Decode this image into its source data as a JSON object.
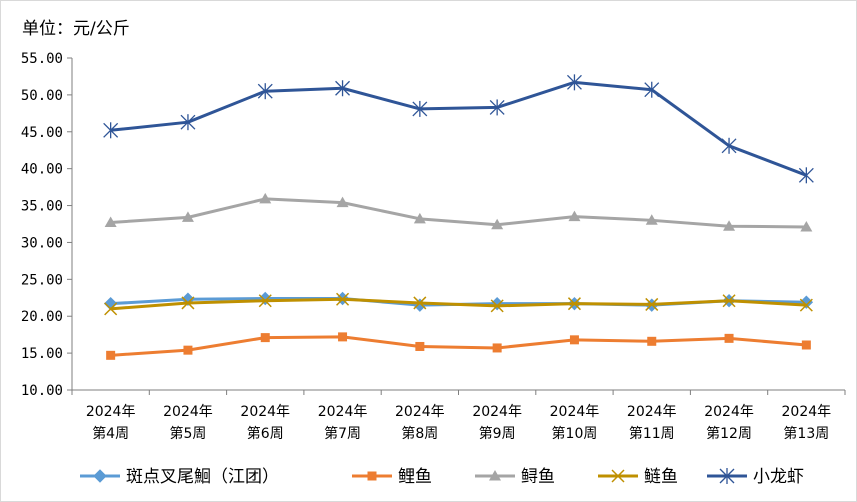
{
  "unit_label": "单位：元/公斤",
  "chart_data": {
    "type": "line",
    "ylim": [
      10,
      55
    ],
    "y_ticks": [
      "10.00",
      "15.00",
      "20.00",
      "25.00",
      "30.00",
      "35.00",
      "40.00",
      "45.00",
      "50.00",
      "55.00"
    ],
    "y_tick_values": [
      10,
      15,
      20,
      25,
      30,
      35,
      40,
      45,
      50,
      55
    ],
    "grid": false,
    "legend_position": "bottom",
    "categories": [
      [
        "2024年",
        "第4周"
      ],
      [
        "2024年",
        "第5周"
      ],
      [
        "2024年",
        "第6周"
      ],
      [
        "2024年",
        "第7周"
      ],
      [
        "2024年",
        "第8周"
      ],
      [
        "2024年",
        "第9周"
      ],
      [
        "2024年",
        "第10周"
      ],
      [
        "2024年",
        "第11周"
      ],
      [
        "2024年",
        "第12周"
      ],
      [
        "2024年",
        "第13周"
      ]
    ],
    "series": [
      {
        "name": "斑点叉尾鮰（江团）",
        "color": "#5b9bd5",
        "marker": "diamond",
        "values": [
          21.7,
          22.3,
          22.4,
          22.4,
          21.5,
          21.7,
          21.7,
          21.5,
          22.1,
          21.9
        ]
      },
      {
        "name": "鲤鱼",
        "color": "#ed7d31",
        "marker": "square",
        "values": [
          14.7,
          15.4,
          17.1,
          17.2,
          15.9,
          15.7,
          16.8,
          16.6,
          17.0,
          16.1
        ]
      },
      {
        "name": "鲟鱼",
        "color": "#a5a5a5",
        "marker": "triangle",
        "values": [
          32.7,
          33.4,
          35.9,
          35.4,
          33.2,
          32.4,
          33.5,
          33.0,
          32.2,
          32.1
        ]
      },
      {
        "name": "鲢鱼",
        "color": "#bf9000",
        "marker": "x",
        "values": [
          21.0,
          21.8,
          22.1,
          22.3,
          21.8,
          21.4,
          21.7,
          21.6,
          22.1,
          21.5
        ]
      },
      {
        "name": "小龙虾",
        "color": "#2f5597",
        "marker": "star",
        "values": [
          45.2,
          46.3,
          50.5,
          50.9,
          48.1,
          48.3,
          51.7,
          50.7,
          43.1,
          39.1
        ]
      }
    ]
  }
}
